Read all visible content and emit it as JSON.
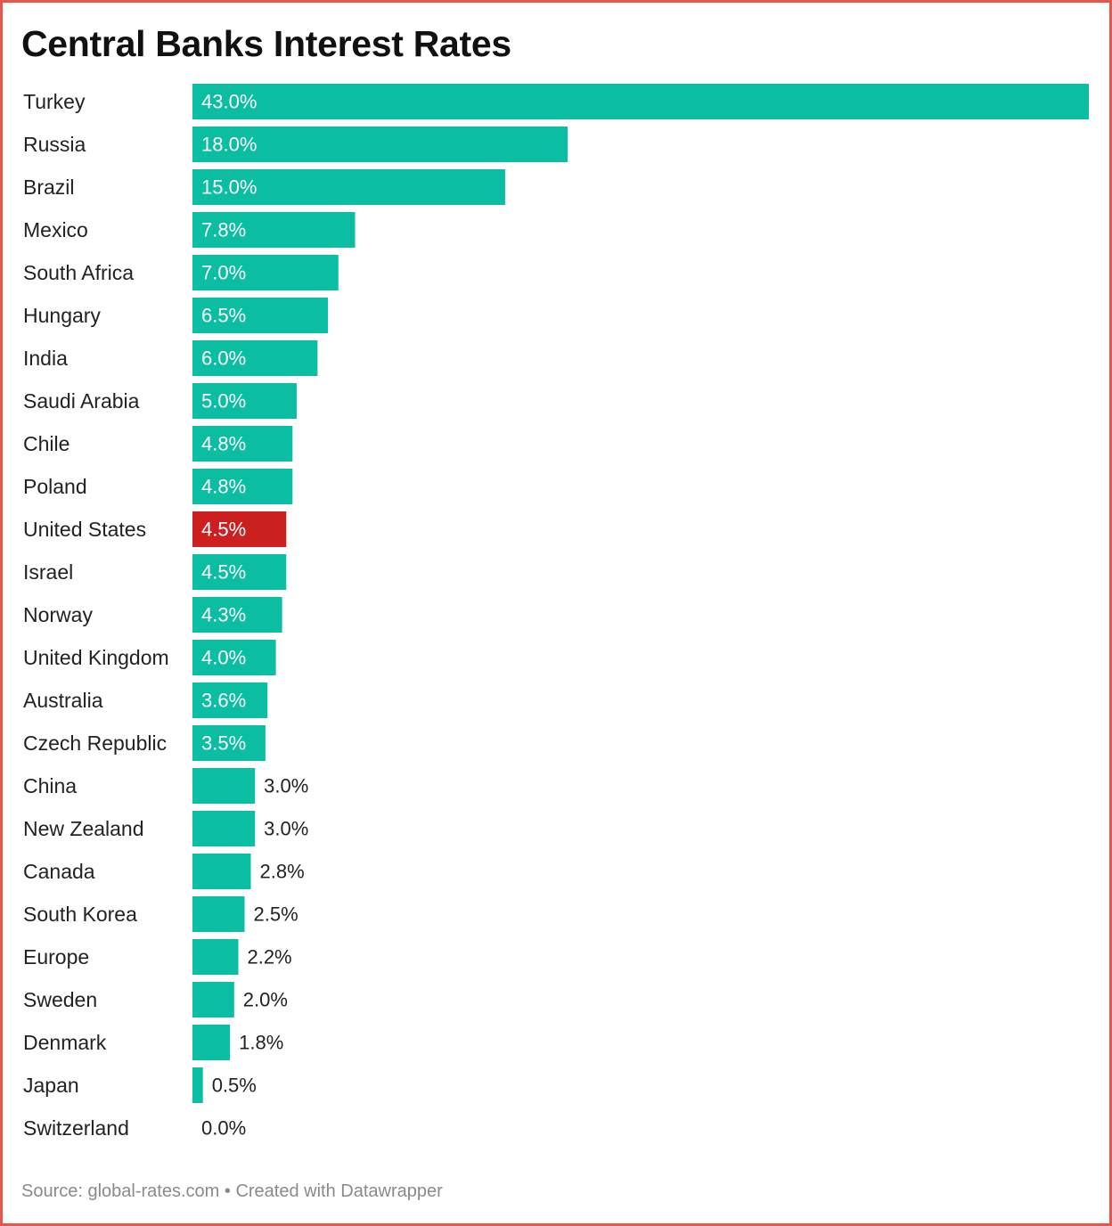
{
  "title": "Central Banks Interest Rates",
  "source": "Source: global-rates.com • Created with Datawrapper",
  "colors": {
    "default_bar": "#0bbea2",
    "highlight_bar": "#cc1f1f",
    "border": "#e8574a"
  },
  "chart_data": {
    "type": "bar",
    "orientation": "horizontal",
    "title": "Central Banks Interest Rates",
    "value_unit": "%",
    "xlim": [
      0,
      43
    ],
    "highlight": "United States",
    "categories": [
      "Turkey",
      "Russia",
      "Brazil",
      "Mexico",
      "South Africa",
      "Hungary",
      "India",
      "Saudi Arabia",
      "Chile",
      "Poland",
      "United States",
      "Israel",
      "Norway",
      "United Kingdom",
      "Australia",
      "Czech Republic",
      "China",
      "New Zealand",
      "Canada",
      "South Korea",
      "Europe",
      "Sweden",
      "Denmark",
      "Japan",
      "Switzerland"
    ],
    "values": [
      43.0,
      18.0,
      15.0,
      7.8,
      7.0,
      6.5,
      6.0,
      5.0,
      4.8,
      4.8,
      4.5,
      4.5,
      4.3,
      4.0,
      3.6,
      3.5,
      3.0,
      3.0,
      2.8,
      2.5,
      2.2,
      2.0,
      1.8,
      0.5,
      0.0
    ],
    "labels": [
      "43.0%",
      "18.0%",
      "15.0%",
      "7.8%",
      "7.0%",
      "6.5%",
      "6.0%",
      "5.0%",
      "4.8%",
      "4.8%",
      "4.5%",
      "4.5%",
      "4.3%",
      "4.0%",
      "3.6%",
      "3.5%",
      "3.0%",
      "3.0%",
      "2.8%",
      "2.5%",
      "2.2%",
      "2.0%",
      "1.8%",
      "0.5%",
      "0.0%"
    ]
  }
}
